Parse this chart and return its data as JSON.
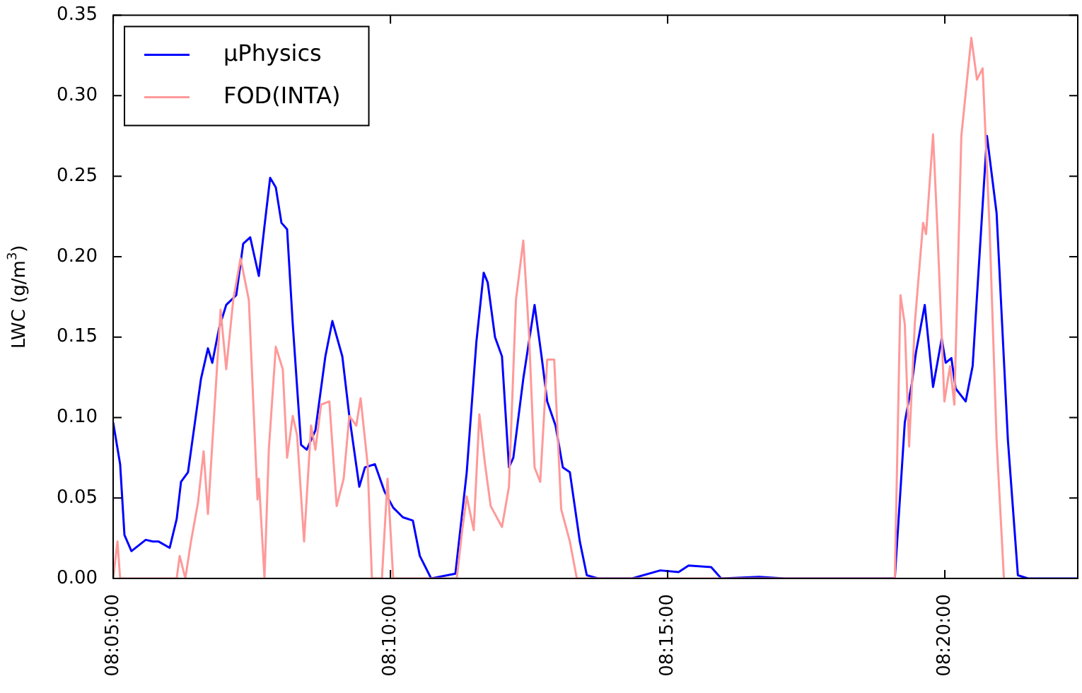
{
  "chart_data": {
    "type": "line",
    "ylabel": "LWC (g/m$^{3}$)",
    "xlim": [
      8.0833,
      8.3733
    ],
    "ylim": [
      0,
      0.35
    ],
    "xticks": [
      {
        "value": 8.083333,
        "label": "08:05:00"
      },
      {
        "value": 8.166667,
        "label": "08:10:00"
      },
      {
        "value": 8.25,
        "label": "08:15:00"
      },
      {
        "value": 8.333333,
        "label": "08:20:00"
      }
    ],
    "yticks": [
      {
        "value": 0,
        "label": "0.00"
      },
      {
        "value": 0.05,
        "label": "0.05"
      },
      {
        "value": 0.1,
        "label": "0.10"
      },
      {
        "value": 0.15,
        "label": "0.15"
      },
      {
        "value": 0.2,
        "label": "0.20"
      },
      {
        "value": 0.25,
        "label": "0.25"
      },
      {
        "value": 0.3,
        "label": "0.30"
      },
      {
        "value": 0.35,
        "label": "0.35"
      }
    ],
    "grid": false,
    "legend": "top left",
    "marker": "none",
    "line_style": "solid",
    "series": [
      {
        "name": "μPhysics",
        "color": "#0000ff",
        "x": [
          8.0833,
          8.0854,
          8.0867,
          8.0888,
          8.0931,
          8.0952,
          8.0969,
          8.1003,
          8.1024,
          8.1037,
          8.1058,
          8.1097,
          8.1118,
          8.1131,
          8.1152,
          8.1173,
          8.1203,
          8.1224,
          8.1245,
          8.1271,
          8.1288,
          8.1305,
          8.1322,
          8.1339,
          8.1356,
          8.1373,
          8.1398,
          8.1415,
          8.1441,
          8.1471,
          8.1492,
          8.1522,
          8.1543,
          8.1573,
          8.159,
          8.162,
          8.1649,
          8.1675,
          8.1704,
          8.1734,
          8.1755,
          8.1789,
          8.1862,
          8.1896,
          8.1925,
          8.1947,
          8.1959,
          8.1981,
          8.2002,
          8.2023,
          8.2036,
          8.2066,
          8.21,
          8.2121,
          8.2138,
          8.2163,
          8.2185,
          8.2206,
          8.2236,
          8.2257,
          8.2291,
          8.2393,
          8.2478,
          8.2533,
          8.2563,
          8.2631,
          8.2661,
          8.2775,
          8.2852,
          8.3183,
          8.3213,
          8.3234,
          8.3247,
          8.3273,
          8.3298,
          8.3324,
          8.3336,
          8.3353,
          8.3366,
          8.3396,
          8.3417,
          8.346,
          8.3489,
          8.3523,
          8.3553,
          8.3583,
          8.3651,
          8.3732
        ],
        "values": [
          0.097,
          0.071,
          0.027,
          0.017,
          0.024,
          0.023,
          0.023,
          0.019,
          0.037,
          0.06,
          0.066,
          0.124,
          0.143,
          0.134,
          0.156,
          0.17,
          0.176,
          0.208,
          0.212,
          0.188,
          0.219,
          0.249,
          0.243,
          0.221,
          0.217,
          0.158,
          0.083,
          0.08,
          0.092,
          0.138,
          0.16,
          0.138,
          0.101,
          0.057,
          0.069,
          0.071,
          0.054,
          0.044,
          0.038,
          0.036,
          0.014,
          0,
          0.003,
          0.066,
          0.147,
          0.19,
          0.184,
          0.15,
          0.138,
          0.069,
          0.075,
          0.124,
          0.17,
          0.138,
          0.11,
          0.095,
          0.069,
          0.066,
          0.023,
          0.002,
          0,
          0,
          0.005,
          0.004,
          0.008,
          0.007,
          0,
          0.001,
          0,
          0,
          0.097,
          0.121,
          0.141,
          0.17,
          0.119,
          0.149,
          0.134,
          0.137,
          0.118,
          0.11,
          0.132,
          0.275,
          0.227,
          0.086,
          0.002,
          0,
          0,
          0
        ]
      },
      {
        "name": "FOD(INTA)",
        "color": "#ff9999",
        "x": [
          8.0833,
          8.0846,
          8.0854,
          8.1024,
          8.1033,
          8.105,
          8.1067,
          8.1088,
          8.1105,
          8.1118,
          8.1139,
          8.1156,
          8.1173,
          8.1194,
          8.1216,
          8.1241,
          8.1267,
          8.1271,
          8.1288,
          8.1301,
          8.1322,
          8.1343,
          8.1356,
          8.1373,
          8.1386,
          8.1407,
          8.1428,
          8.1441,
          8.1458,
          8.1483,
          8.1505,
          8.1526,
          8.1543,
          8.1564,
          8.1577,
          8.1598,
          8.1611,
          8.1641,
          8.1658,
          8.1675,
          8.1866,
          8.1883,
          8.1896,
          8.1917,
          8.1934,
          8.1951,
          8.1968,
          8.2002,
          8.2023,
          8.2044,
          8.2066,
          8.2083,
          8.21,
          8.2117,
          8.2138,
          8.2159,
          8.218,
          8.2206,
          8.2227,
          8.3183,
          8.32,
          8.3213,
          8.3226,
          8.3243,
          8.3268,
          8.3277,
          8.3298,
          8.3311,
          8.3332,
          8.3349,
          8.3362,
          8.3383,
          8.3413,
          8.343,
          8.3447,
          8.3468,
          8.3489,
          8.3511
        ],
        "values": [
          0,
          0.023,
          0,
          0,
          0.014,
          0,
          0.023,
          0.047,
          0.079,
          0.04,
          0.11,
          0.167,
          0.13,
          0.173,
          0.199,
          0.173,
          0.049,
          0.062,
          0,
          0.08,
          0.144,
          0.13,
          0.075,
          0.101,
          0.089,
          0.023,
          0.095,
          0.08,
          0.108,
          0.11,
          0.045,
          0.062,
          0.101,
          0.095,
          0.112,
          0.071,
          0,
          0,
          0.062,
          0,
          0,
          0.031,
          0.051,
          0.03,
          0.102,
          0.071,
          0.045,
          0.032,
          0.057,
          0.173,
          0.21,
          0.153,
          0.069,
          0.06,
          0.136,
          0.136,
          0.043,
          0.023,
          0,
          0,
          0.176,
          0.158,
          0.082,
          0.158,
          0.221,
          0.214,
          0.276,
          0.217,
          0.11,
          0.132,
          0.108,
          0.275,
          0.336,
          0.31,
          0.317,
          0.217,
          0.086,
          0
        ]
      }
    ]
  }
}
